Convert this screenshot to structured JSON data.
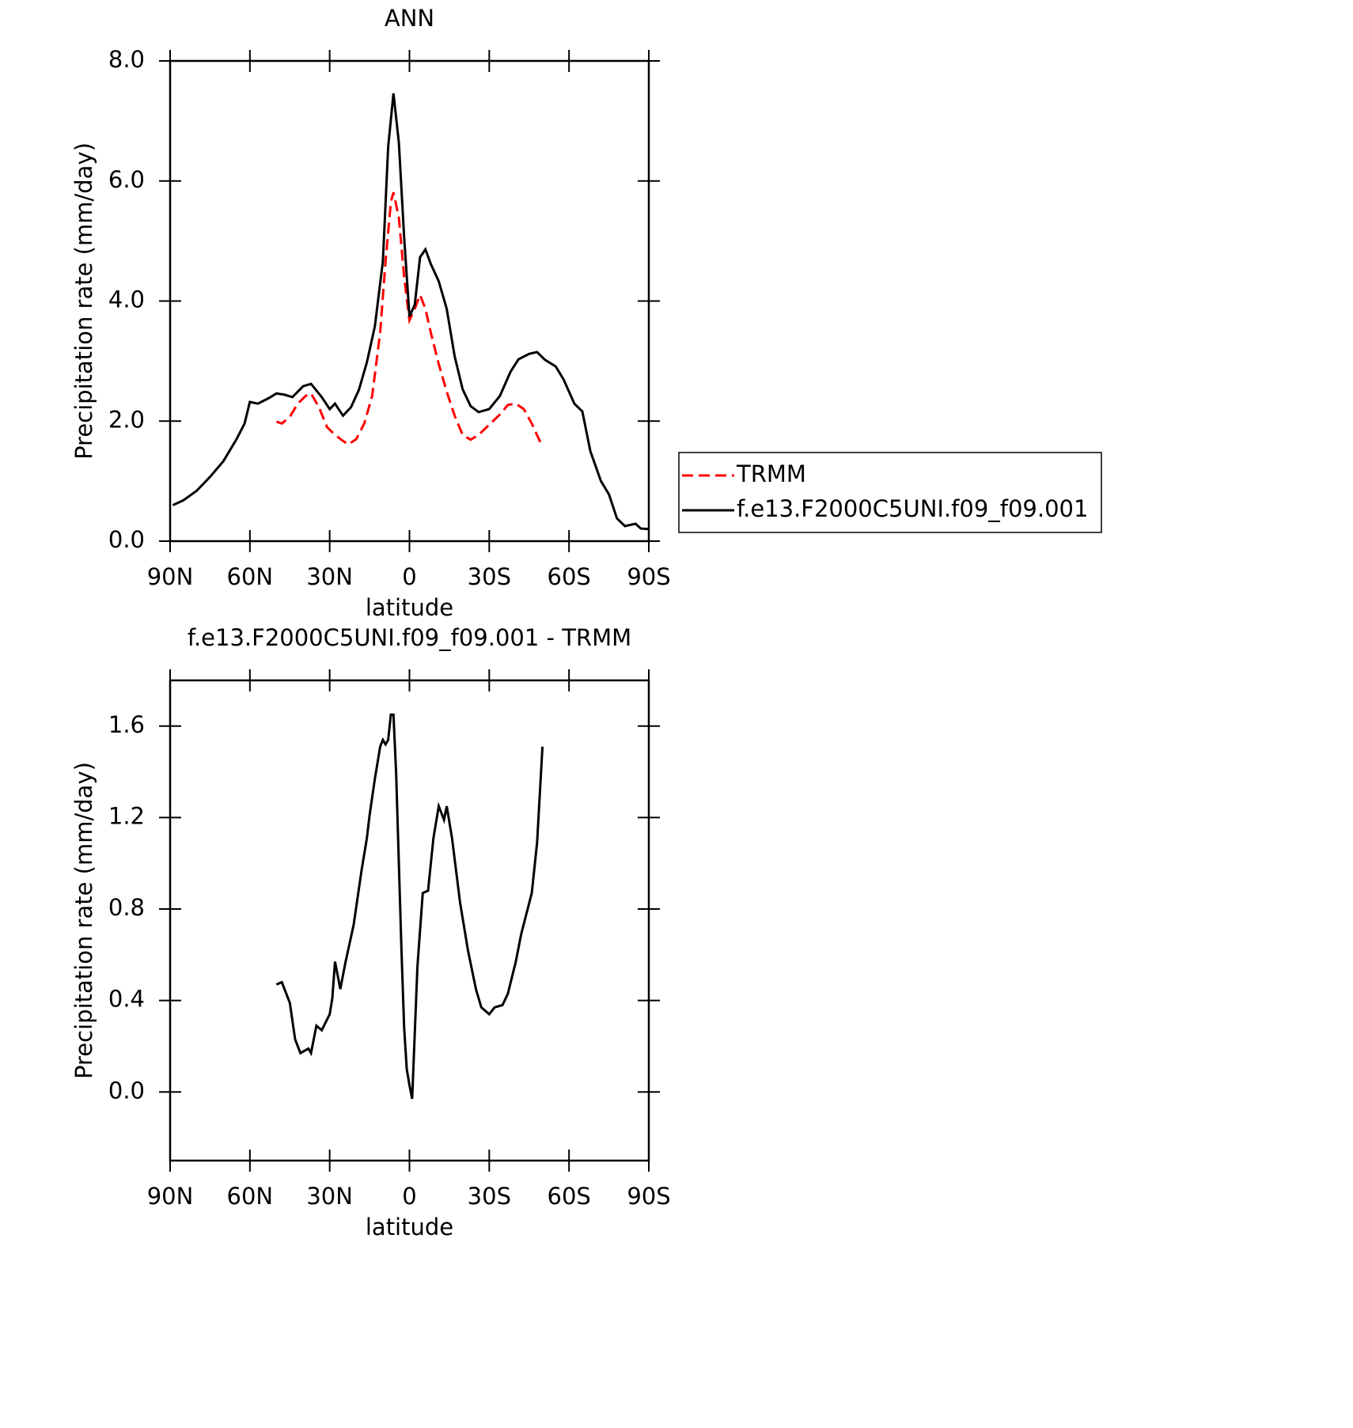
{
  "chart_data": [
    {
      "type": "line",
      "title": "ANN",
      "x_label": "latitude",
      "y_label": "Precipitation rate (mm/day)",
      "xlim": [
        90,
        -90
      ],
      "xticks": [
        {
          "value": 90,
          "label": "90N"
        },
        {
          "value": 60,
          "label": "60N"
        },
        {
          "value": 30,
          "label": "30N"
        },
        0,
        {
          "value": -30,
          "label": "30S"
        },
        {
          "value": -60,
          "label": "60S"
        },
        {
          "value": -90,
          "label": "90S"
        }
      ],
      "ylim": [
        0,
        8
      ],
      "yticks": [
        {
          "value": 0,
          "label": "0.0"
        },
        {
          "value": 2,
          "label": "2.0"
        },
        {
          "value": 4,
          "label": "4.0"
        },
        {
          "value": 6,
          "label": "6.0"
        },
        {
          "value": 8,
          "label": "8.0"
        }
      ],
      "legend": "right",
      "series": [
        {
          "name": "TRMM",
          "color": "#ff0000",
          "dash": true,
          "x": [
            50,
            48,
            45,
            42,
            39,
            37,
            34,
            31,
            28,
            25,
            23,
            20,
            17,
            14,
            11,
            9,
            7,
            6,
            4,
            2,
            0,
            -2,
            -4,
            -6,
            -8,
            -11,
            -14,
            -17,
            -20,
            -23,
            -26,
            -30,
            -34,
            -37,
            -40,
            -43,
            -46,
            -50
          ],
          "values": [
            1.99,
            1.96,
            2.07,
            2.29,
            2.42,
            2.46,
            2.23,
            1.9,
            1.77,
            1.67,
            1.61,
            1.7,
            1.96,
            2.42,
            3.48,
            4.66,
            5.65,
            5.81,
            5.39,
            4.4,
            3.68,
            3.87,
            4.1,
            3.87,
            3.48,
            2.95,
            2.49,
            2.09,
            1.77,
            1.69,
            1.77,
            1.94,
            2.11,
            2.27,
            2.29,
            2.2,
            1.96,
            1.57
          ]
        },
        {
          "name": "f.e13.F2000C5UNI.f09_f09.001",
          "color": "#000000",
          "dash": false,
          "x": [
            89,
            85,
            80,
            75,
            70,
            65,
            62,
            60,
            57,
            53,
            50,
            47,
            44,
            40,
            37,
            33,
            30,
            28,
            25,
            22,
            19,
            16,
            13,
            10,
            8,
            6,
            4,
            2,
            0,
            -2,
            -4,
            -6,
            -8,
            -11,
            -14,
            -17,
            -20,
            -23,
            -26,
            -30,
            -34,
            -38,
            -41,
            -45,
            -48,
            -51,
            -55,
            -58,
            -62,
            -65,
            -68,
            -72,
            -75,
            -78,
            -81,
            -85,
            -87,
            -90
          ],
          "values": [
            0.6,
            0.68,
            0.84,
            1.07,
            1.33,
            1.7,
            1.96,
            2.32,
            2.29,
            2.38,
            2.46,
            2.44,
            2.4,
            2.58,
            2.62,
            2.4,
            2.2,
            2.29,
            2.09,
            2.23,
            2.52,
            2.98,
            3.58,
            4.66,
            6.57,
            7.46,
            6.64,
            5.06,
            3.74,
            3.94,
            4.73,
            4.86,
            4.62,
            4.33,
            3.87,
            3.08,
            2.53,
            2.25,
            2.15,
            2.2,
            2.42,
            2.82,
            3.03,
            3.12,
            3.15,
            3.02,
            2.91,
            2.69,
            2.29,
            2.16,
            1.5,
            1.0,
            0.78,
            0.38,
            0.25,
            0.29,
            0.21,
            0.2
          ]
        }
      ]
    },
    {
      "type": "line",
      "title": "f.e13.F2000C5UNI.f09_f09.001 - TRMM",
      "x_label": "latitude",
      "y_label": "Precipitation rate (mm/day)",
      "xlim": [
        90,
        -90
      ],
      "xticks": [
        {
          "value": 90,
          "label": "90N"
        },
        {
          "value": 60,
          "label": "60N"
        },
        {
          "value": 30,
          "label": "30N"
        },
        0,
        {
          "value": -30,
          "label": "30S"
        },
        {
          "value": -60,
          "label": "60S"
        },
        {
          "value": -90,
          "label": "90S"
        }
      ],
      "ylim": [
        -0.3,
        1.8
      ],
      "yticks": [
        {
          "value": 0,
          "label": "0.0"
        },
        0.4,
        0.8,
        1.2,
        1.6
      ],
      "series": [
        {
          "color": "#000000",
          "dash": false,
          "x": [
            50,
            48,
            45,
            43,
            41,
            38,
            37,
            35,
            33,
            30,
            29,
            28,
            26,
            24,
            21,
            18,
            16,
            15,
            13,
            11,
            10,
            9,
            8,
            7,
            6,
            5,
            3,
            2,
            1,
            0,
            -1,
            -3,
            -5,
            -7,
            -9,
            -11,
            -13,
            -14,
            -16,
            -19,
            -22,
            -25,
            -27,
            -30,
            -32,
            -35,
            -37,
            -40,
            -42,
            -44,
            -46,
            -48,
            -50
          ],
          "values": [
            0.47,
            0.48,
            0.39,
            0.23,
            0.17,
            0.19,
            0.17,
            0.29,
            0.27,
            0.34,
            0.41,
            0.57,
            0.45,
            0.57,
            0.73,
            0.97,
            1.11,
            1.21,
            1.37,
            1.51,
            1.54,
            1.52,
            1.54,
            1.65,
            1.65,
            1.39,
            0.62,
            0.28,
            0.1,
            0.03,
            -0.03,
            0.55,
            0.87,
            0.88,
            1.11,
            1.25,
            1.19,
            1.25,
            1.11,
            0.83,
            0.62,
            0.45,
            0.37,
            0.34,
            0.37,
            0.38,
            0.43,
            0.57,
            0.69,
            0.78,
            0.87,
            1.09,
            1.51
          ]
        }
      ]
    }
  ]
}
